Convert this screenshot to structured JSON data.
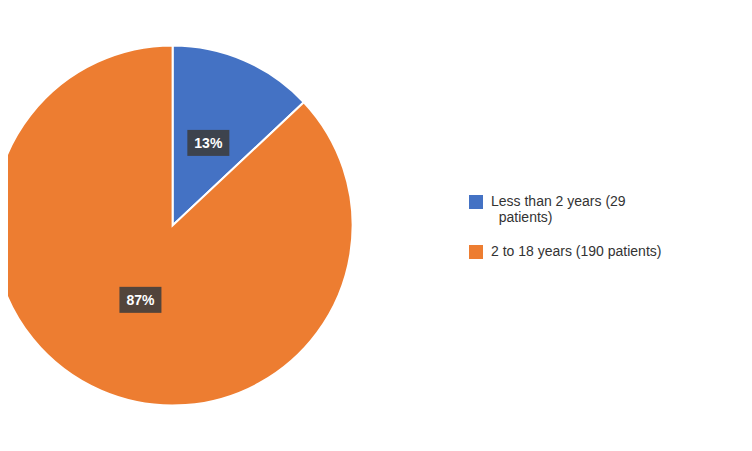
{
  "chart_data": {
    "type": "pie",
    "labels": [
      "Less than 2 years (29\n  patients)",
      "2 to 18 years (190 patients)"
    ],
    "values": [
      13,
      87
    ],
    "value_labels": [
      "13%",
      "87%"
    ],
    "colors": [
      "#4472C4",
      "#ED7D31"
    ],
    "data_labels": true,
    "legend": "right"
  }
}
